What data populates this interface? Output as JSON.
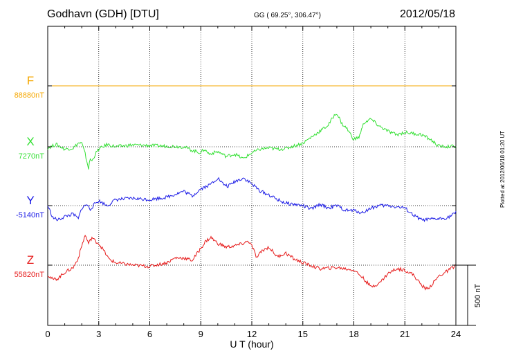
{
  "header": {
    "station": "Godhavn (GDH)  [DTU]",
    "coords": "GG ( 69.25°, 306.47°)",
    "date": "2012/05/18"
  },
  "plotted_note": "Plotted at 2012/06/18 01:20 UT",
  "scale_bar_label": "500 nT",
  "colors": {
    "F": "#f5a700",
    "X": "#33e033",
    "Y": "#1a1ae6",
    "Z": "#e61a1a",
    "grid": "#000000"
  },
  "chart_data": {
    "type": "line",
    "title": "",
    "xlabel": "U T (hour)",
    "ylabel": "",
    "xlim": [
      0,
      24
    ],
    "x_ticks": [
      "0",
      "3",
      "6",
      "9",
      "12",
      "15",
      "18",
      "21",
      "24"
    ],
    "grid": true,
    "scale_bar_nT": 500,
    "series": [
      {
        "name": "F",
        "baseline_label": "88880nT",
        "color": "#f5a700",
        "x": [
          0,
          24
        ],
        "dev_nT": [
          0,
          0
        ]
      },
      {
        "name": "X",
        "baseline_label": "7270nT",
        "color": "#33e033",
        "x": [
          0,
          0.5,
          1,
          1.5,
          1.8,
          2.0,
          2.2,
          2.4,
          2.5,
          2.6,
          2.8,
          3.0,
          3.5,
          4,
          5,
          6,
          7,
          8,
          8.5,
          9,
          9.2,
          9.5,
          10,
          10.5,
          11,
          11.5,
          11.8,
          12,
          12.5,
          13,
          13.5,
          14,
          15,
          15.5,
          16,
          16.5,
          16.8,
          17.0,
          17.3,
          17.6,
          18,
          18.3,
          18.6,
          19,
          19.5,
          20,
          20.5,
          21,
          22,
          22.5,
          23,
          23.5,
          24
        ],
        "dev_nT": [
          -10,
          20,
          -20,
          -10,
          30,
          30,
          -60,
          -180,
          -100,
          -120,
          -60,
          -20,
          20,
          0,
          15,
          10,
          5,
          0,
          -30,
          -50,
          -20,
          -60,
          -40,
          -80,
          -60,
          -100,
          -70,
          -50,
          -20,
          -10,
          -20,
          -15,
          30,
          80,
          130,
          180,
          250,
          280,
          190,
          150,
          60,
          80,
          200,
          230,
          170,
          130,
          100,
          120,
          100,
          60,
          5,
          0,
          5
        ]
      },
      {
        "name": "Y",
        "baseline_label": "-5140nT",
        "color": "#1a1ae6",
        "x": [
          0,
          0.3,
          0.6,
          1,
          1.5,
          1.8,
          2,
          2.3,
          2.5,
          2.8,
          3,
          3.5,
          4,
          5,
          6,
          7,
          8,
          8.5,
          9,
          9.5,
          10,
          10.3,
          10.6,
          11,
          11.5,
          12,
          12.5,
          13,
          13.5,
          14,
          15,
          15.5,
          16,
          16.5,
          17,
          17.5,
          18,
          18.5,
          19,
          19.5,
          20,
          20.5,
          21,
          21.5,
          22,
          23,
          23.5,
          24
        ],
        "dev_nT": [
          0,
          -100,
          -120,
          -90,
          -70,
          -110,
          -20,
          10,
          -30,
          20,
          40,
          0,
          50,
          60,
          50,
          70,
          120,
          80,
          140,
          170,
          230,
          180,
          160,
          200,
          230,
          180,
          120,
          90,
          50,
          20,
          0,
          -30,
          10,
          -20,
          0,
          -40,
          -40,
          -60,
          -20,
          0,
          0,
          -10,
          -20,
          -80,
          -120,
          -110,
          -100,
          -60
        ]
      },
      {
        "name": "Z",
        "baseline_label": "55820nT",
        "color": "#e61a1a",
        "x": [
          0,
          0.3,
          0.6,
          1,
          1.5,
          1.8,
          2,
          2.2,
          2.4,
          2.6,
          2.8,
          3,
          3.3,
          3.6,
          4,
          5,
          6,
          7,
          7.5,
          8,
          8.5,
          9,
          9.3,
          9.6,
          10,
          10.5,
          11,
          11.5,
          11.8,
          12,
          12.3,
          12.6,
          13,
          13.5,
          14,
          14.5,
          15,
          16,
          17,
          18,
          18.5,
          19,
          19.5,
          20,
          20.5,
          21,
          21.5,
          22,
          22.3,
          22.6,
          23,
          23.5,
          24
        ],
        "dev_nT": [
          -80,
          -120,
          -110,
          -60,
          -20,
          60,
          160,
          250,
          180,
          230,
          200,
          180,
          120,
          50,
          20,
          0,
          -10,
          20,
          60,
          60,
          40,
          140,
          200,
          230,
          180,
          150,
          160,
          180,
          200,
          160,
          60,
          120,
          150,
          70,
          100,
          50,
          20,
          -30,
          -20,
          -40,
          -100,
          -180,
          -150,
          -70,
          -30,
          -40,
          -80,
          -170,
          -200,
          -160,
          -90,
          -50,
          0
        ]
      }
    ]
  }
}
